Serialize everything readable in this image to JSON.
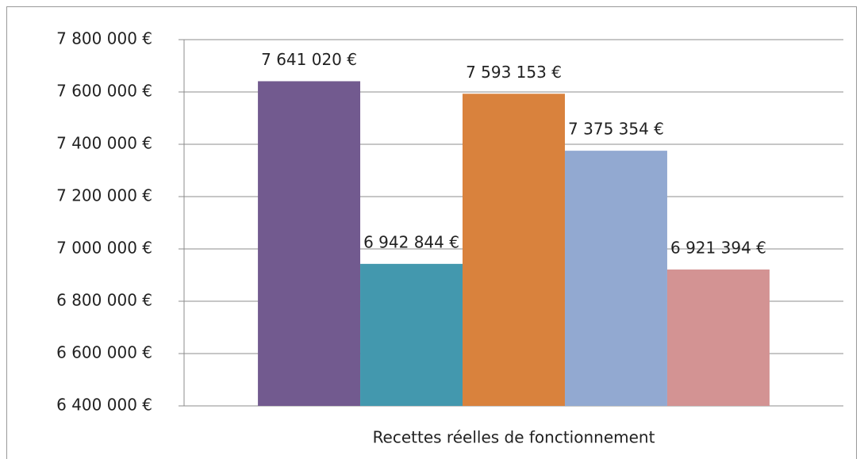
{
  "chart_data": {
    "type": "bar",
    "categories": [
      "Recettes réelles de fonctionnement"
    ],
    "series": [
      {
        "color": "#725a8f",
        "values": [
          7641020
        ],
        "value_labels": [
          "7 641 020 €"
        ]
      },
      {
        "color": "#4398ae",
        "values": [
          6942844
        ],
        "value_labels": [
          "6 942 844 €"
        ]
      },
      {
        "color": "#d9823d",
        "values": [
          7593153
        ],
        "value_labels": [
          "7 593 153 €"
        ]
      },
      {
        "color": "#92a9d1",
        "values": [
          7375354
        ],
        "value_labels": [
          "7 375 354 €"
        ]
      },
      {
        "color": "#d39393",
        "values": [
          6921394
        ],
        "value_labels": [
          "6 921 394 €"
        ]
      }
    ],
    "ylim": [
      6400000,
      7800000
    ],
    "yticks": [
      {
        "value": 6400000,
        "label": "6 400 000 €"
      },
      {
        "value": 6600000,
        "label": "6 600 000 €"
      },
      {
        "value": 6800000,
        "label": "6 800 000 €"
      },
      {
        "value": 7000000,
        "label": "7 000 000 €"
      },
      {
        "value": 7200000,
        "label": "7 200 000 €"
      },
      {
        "value": 7400000,
        "label": "7 400 000 €"
      },
      {
        "value": 7600000,
        "label": "7 600 000 €"
      },
      {
        "value": 7800000,
        "label": "7 800 000 €"
      }
    ],
    "grid": true
  }
}
